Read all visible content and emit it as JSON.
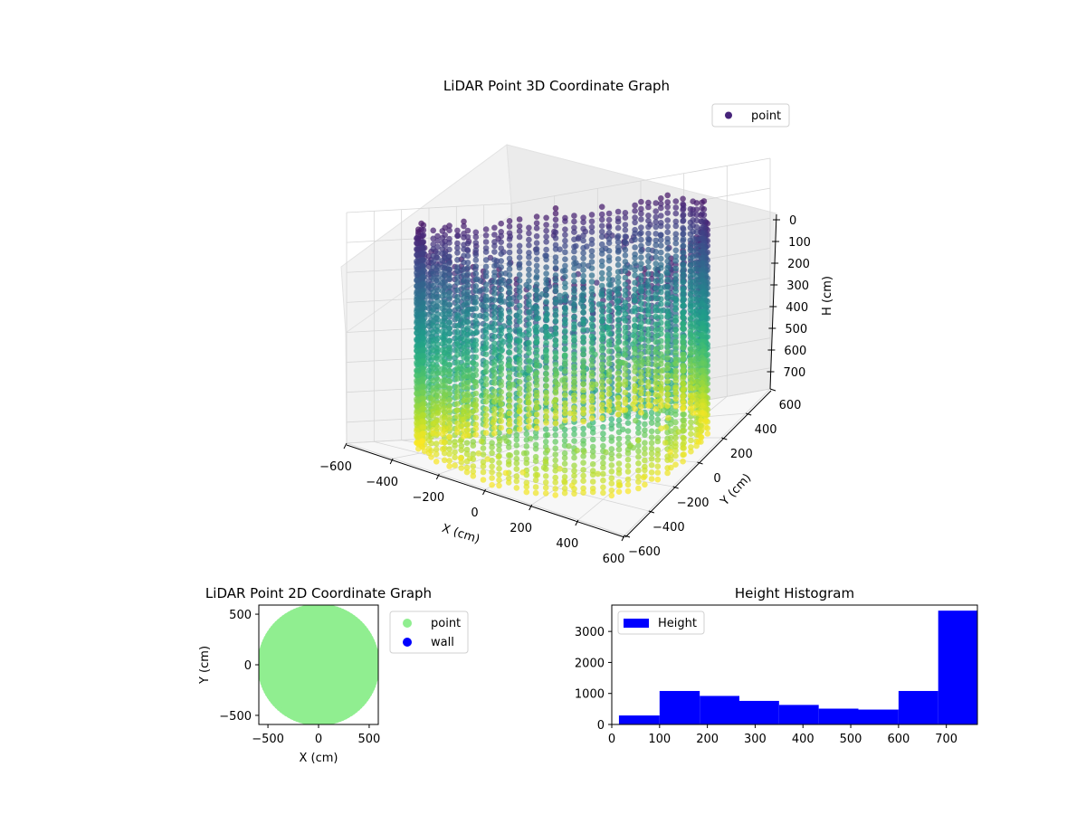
{
  "chart_data": [
    {
      "type": "scatter",
      "projection": "3d",
      "title": "LiDAR Point 3D Coordinate Graph",
      "xlabel": "X (cm)",
      "ylabel": "Y (cm)",
      "zlabel": "H (cm)",
      "xlim": [
        -600,
        600
      ],
      "ylim": [
        -600,
        600
      ],
      "zlim": [
        0,
        770
      ],
      "z_inverted": true,
      "x_ticks": [
        -600,
        -400,
        -200,
        0,
        200,
        400,
        600
      ],
      "y_ticks": [
        -600,
        -400,
        -200,
        0,
        200,
        400,
        600
      ],
      "z_ticks": [
        0,
        100,
        200,
        300,
        400,
        500,
        600,
        700
      ],
      "colormap": "viridis",
      "grid": true,
      "legend": {
        "placement": "top-right",
        "entries": [
          "point"
        ]
      },
      "series": [
        {
          "name": "point",
          "shape": "cylindrical wall, radius ~560 cm, H 0–760 cm, plus scattered interior points",
          "approx_points": 9600
        }
      ]
    },
    {
      "type": "scatter",
      "title": "LiDAR Point 2D Coordinate Graph",
      "xlabel": "X (cm)",
      "ylabel": "Y (cm)",
      "xlim": [
        -590,
        590
      ],
      "ylim": [
        -590,
        590
      ],
      "x_ticks": [
        -500,
        0,
        500
      ],
      "y_ticks": [
        -500,
        0,
        500
      ],
      "legend": {
        "placement": "outside-right",
        "entries": [
          "point",
          "wall"
        ]
      },
      "series": [
        {
          "name": "point",
          "color": "#90ee90",
          "shape": "filled disc radius ~560 cm centred at origin"
        },
        {
          "name": "wall",
          "color": "#0000ff"
        }
      ]
    },
    {
      "type": "bar",
      "title": "Height Histogram",
      "xlabel": "",
      "ylabel": "",
      "xlim": [
        0,
        765
      ],
      "ylim": [
        0,
        3850
      ],
      "x_ticks": [
        0,
        100,
        200,
        300,
        400,
        500,
        600,
        700
      ],
      "y_ticks": [
        0,
        1000,
        2000,
        3000
      ],
      "color": "#0000ff",
      "legend": {
        "placement": "top-left",
        "entries": [
          "Height"
        ]
      },
      "bins": [
        {
          "x0": 15,
          "x1": 100,
          "count": 290
        },
        {
          "x0": 100,
          "x1": 184,
          "count": 1080
        },
        {
          "x0": 184,
          "x1": 267,
          "count": 920
        },
        {
          "x0": 267,
          "x1": 350,
          "count": 760
        },
        {
          "x0": 350,
          "x1": 433,
          "count": 630
        },
        {
          "x0": 433,
          "x1": 516,
          "count": 510
        },
        {
          "x0": 516,
          "x1": 600,
          "count": 480
        },
        {
          "x0": 600,
          "x1": 683,
          "count": 1080
        },
        {
          "x0": 683,
          "x1": 765,
          "count": 3670
        }
      ]
    }
  ]
}
